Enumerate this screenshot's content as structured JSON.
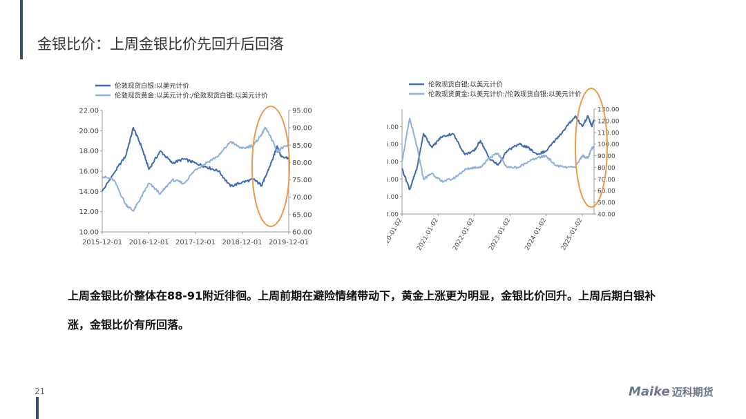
{
  "title": "金银比价：上周金银比价先回升后回落",
  "summary": "上周金银比价整体在88-91附近徘徊。上周前期在避险情绪带动下，黄金上涨更为明显，金银比价回升。上周后期白银补涨，金银比价有所回落。",
  "page_number": "21",
  "logo": {
    "brand": "Maike",
    "cn": "迈科期货"
  },
  "colors": {
    "silver": "#3d6aaf",
    "ratio": "#8fb0da",
    "highlight": "#e89a4e",
    "accent_bar": "#3d4d63"
  },
  "chart_data": [
    {
      "type": "line",
      "title": "",
      "legend": [
        "伦敦现货白银:以美元计价",
        "伦敦现货黄金:以美元计价:/伦敦现货白银:以美元计价"
      ],
      "legend_position": "top-left",
      "x": [
        "2015-12-01",
        "2016-03-01",
        "2016-06-01",
        "2016-08-01",
        "2016-10-01",
        "2016-12-01",
        "2017-03-01",
        "2017-06-01",
        "2017-09-01",
        "2017-12-01",
        "2018-03-01",
        "2018-06-01",
        "2018-09-01",
        "2018-12-01",
        "2019-03-01",
        "2019-05-01",
        "2019-06-01",
        "2019-08-01",
        "2019-09-01",
        "2019-10-01",
        "2019-12-01"
      ],
      "x_ticks": [
        "2015-12-01",
        "2016-12-01",
        "2017-12-01",
        "2018-12-01",
        "2019-12-01"
      ],
      "series": [
        {
          "name": "伦敦现货白银:以美元计价",
          "axis": "left",
          "values": [
            14.0,
            15.8,
            17.5,
            20.3,
            18.5,
            16.2,
            18.0,
            16.8,
            17.2,
            16.8,
            16.4,
            16.0,
            14.5,
            14.9,
            15.2,
            14.6,
            15.4,
            17.3,
            18.5,
            17.5,
            17.3
          ]
        },
        {
          "name": "伦敦现货黄金:以美元计价:/伦敦现货白银:以美元计价",
          "axis": "right",
          "values": [
            76,
            75,
            68,
            66,
            70,
            74,
            71,
            75,
            74,
            78,
            80,
            82,
            86,
            84,
            85,
            88,
            90,
            86,
            83,
            84,
            85
          ]
        }
      ],
      "y_left": {
        "ticks": [
          "10.00",
          "12.00",
          "14.00",
          "16.00",
          "18.00",
          "20.00",
          "22.00"
        ],
        "range": [
          10,
          22
        ]
      },
      "y_right": {
        "ticks": [
          "60.00",
          "65.00",
          "70.00",
          "75.00",
          "80.00",
          "85.00",
          "90.00",
          "95.00"
        ],
        "range": [
          60,
          95
        ]
      },
      "highlight": "ellipse around 2019"
    },
    {
      "type": "line",
      "title": "",
      "legend": [
        "伦敦现货白银:以美元计价",
        "伦敦现货黄金:以美元计价:/伦敦现货白银:以美元计价"
      ],
      "legend_position": "top-left",
      "x": [
        "2020-01-02",
        "2020-03-20",
        "2020-06-01",
        "2020-08-07",
        "2020-11-01",
        "2021-02-01",
        "2021-06-01",
        "2021-09-30",
        "2022-01-01",
        "2022-03-08",
        "2022-06-01",
        "2022-09-01",
        "2022-12-01",
        "2023-04-01",
        "2023-07-01",
        "2023-10-01",
        "2024-01-01",
        "2024-04-01",
        "2024-07-01",
        "2024-10-22",
        "2025-01-02",
        "2025-03-01",
        "2025-04-08",
        "2025-05-01"
      ],
      "x_ticks": [
        "2020-01-02",
        "2021-01-02",
        "2022-01-02",
        "2023-01-02",
        "2024-01-02",
        "2025-01-02"
      ],
      "series": [
        {
          "name": "伦敦现货白银:以美元计价",
          "axis": "left",
          "values": [
            18,
            12,
            18,
            28,
            24,
            27,
            28,
            22,
            23,
            26,
            21,
            19,
            23,
            25,
            24,
            22,
            23,
            26,
            29,
            33,
            30,
            33,
            30,
            32
          ]
        },
        {
          "name": "伦敦现货黄金:以美元计价:/伦敦现货白银:以美元计价",
          "axis": "right",
          "values": [
            85,
            122,
            98,
            70,
            75,
            68,
            70,
            78,
            80,
            80,
            88,
            92,
            80,
            80,
            85,
            88,
            90,
            82,
            80,
            80,
            90,
            88,
            96,
            98
          ]
        }
      ],
      "y_left": {
        "ticks": [
          "5.00",
          "10.00",
          "15.00",
          "20.00",
          "25.00",
          "30.00"
        ],
        "range": [
          5,
          35
        ]
      },
      "y_right": {
        "ticks": [
          "40.00",
          "50.00",
          "60.00",
          "70.00",
          "80.00",
          "90.00",
          "100.00",
          "110.00",
          "120.00",
          "130.00"
        ],
        "range": [
          40,
          130
        ]
      },
      "highlight": "ellipse around 2025"
    }
  ]
}
